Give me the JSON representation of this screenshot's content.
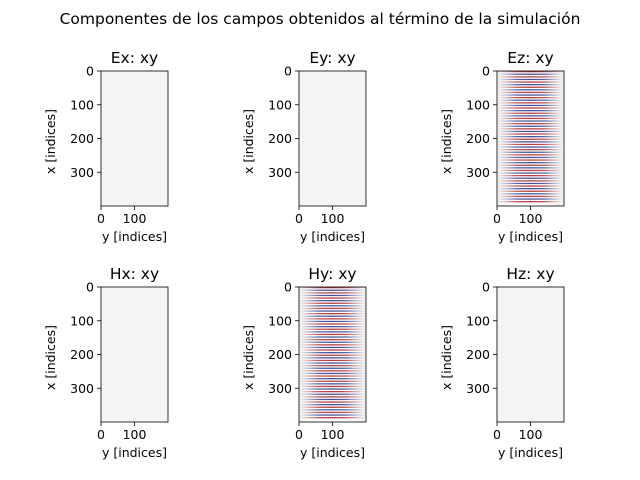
{
  "figure": {
    "suptitle": "Componentes de los campos obtenidos al término de la simulación"
  },
  "chart_data": [
    {
      "type": "heatmap",
      "title": "Ex: xy",
      "xlabel": "y [indices]",
      "ylabel": "x [indices]",
      "xticks": [
        "0",
        "100"
      ],
      "yticks": [
        "0",
        "100",
        "200",
        "300"
      ],
      "xlim": [
        0,
        200
      ],
      "ylim": [
        400,
        0
      ],
      "pattern": "uniform",
      "fill_color": "#f4f4f4"
    },
    {
      "type": "heatmap",
      "title": "Ey: xy",
      "xlabel": "y [indices]",
      "ylabel": "x [indices]",
      "xticks": [
        "0",
        "100"
      ],
      "yticks": [
        "0",
        "100",
        "200",
        "300"
      ],
      "xlim": [
        0,
        200
      ],
      "ylim": [
        400,
        0
      ],
      "pattern": "uniform",
      "fill_color": "#f4f4f4"
    },
    {
      "type": "heatmap",
      "title": "Ez: xy",
      "xlabel": "y [indices]",
      "ylabel": "x [indices]",
      "xticks": [
        "0",
        "100"
      ],
      "yticks": [
        "0",
        "100",
        "200",
        "300"
      ],
      "xlim": [
        0,
        200
      ],
      "ylim": [
        400,
        0
      ],
      "pattern": "horizontal-stripes",
      "colormap": "RdBu"
    },
    {
      "type": "heatmap",
      "title": "Hx: xy",
      "xlabel": "y [indices]",
      "ylabel": "x [indices]",
      "xticks": [
        "0",
        "100"
      ],
      "yticks": [
        "0",
        "100",
        "200",
        "300"
      ],
      "xlim": [
        0,
        200
      ],
      "ylim": [
        400,
        0
      ],
      "pattern": "uniform",
      "fill_color": "#f4f4f4"
    },
    {
      "type": "heatmap",
      "title": "Hy: xy",
      "xlabel": "y [indices]",
      "ylabel": "x [indices]",
      "xticks": [
        "0",
        "100"
      ],
      "yticks": [
        "0",
        "100",
        "200",
        "300"
      ],
      "xlim": [
        0,
        200
      ],
      "ylim": [
        400,
        0
      ],
      "pattern": "horizontal-stripes",
      "colormap": "RdBu"
    },
    {
      "type": "heatmap",
      "title": "Hz: xy",
      "xlabel": "y [indices]",
      "ylabel": "x [indices]",
      "xticks": [
        "0",
        "100"
      ],
      "yticks": [
        "0",
        "100",
        "200",
        "300"
      ],
      "xlim": [
        0,
        200
      ],
      "ylim": [
        400,
        0
      ],
      "pattern": "uniform",
      "fill_color": "#f4f4f4"
    }
  ]
}
